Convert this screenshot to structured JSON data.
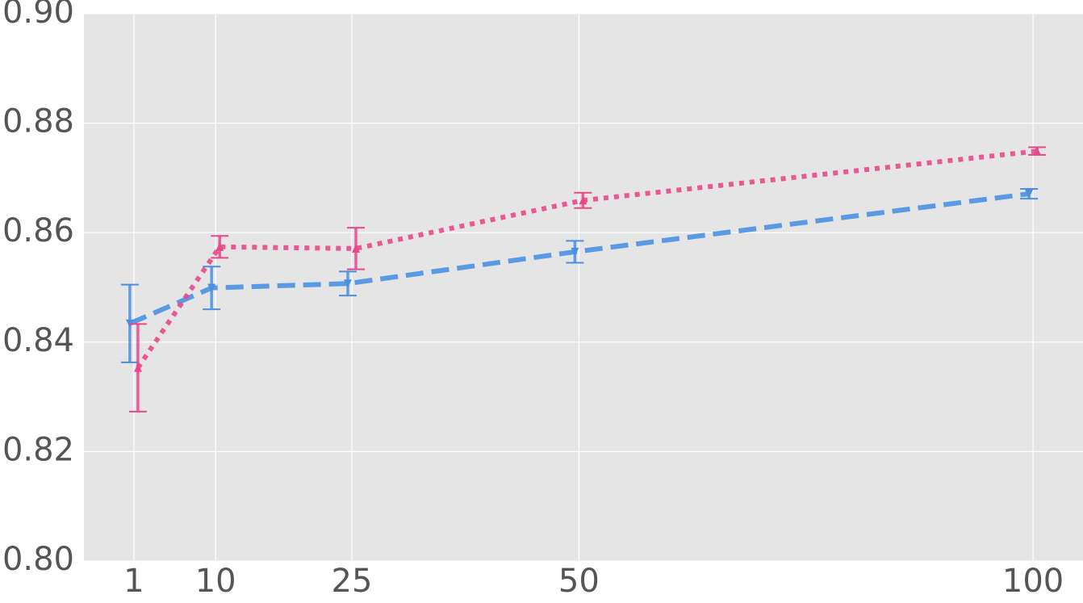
{
  "chart_data": {
    "type": "line",
    "x": [
      1,
      10,
      25,
      50,
      100
    ],
    "xlim": [
      -4.5,
      105.5
    ],
    "xticks": [
      1,
      10,
      25,
      50,
      100
    ],
    "ylim": [
      0.8,
      0.9
    ],
    "yticks": [
      {
        "value": 0.8,
        "label": "0.80"
      },
      0.82,
      0.84,
      0.86,
      0.88,
      {
        "value": 0.9,
        "label": "0.90"
      }
    ],
    "grid": true,
    "series": [
      {
        "color": "#4a90e2",
        "linestyle": "dashed",
        "marker": "triangle-down",
        "values": [
          0.8434,
          0.8499,
          0.8507,
          0.8565,
          0.8671
        ],
        "errors": [
          0.0071,
          0.0039,
          0.0022,
          0.002,
          0.0009
        ]
      },
      {
        "color": "#e8488a",
        "linestyle": "dotted",
        "marker": "triangle-up",
        "values": [
          0.8353,
          0.8574,
          0.8571,
          0.8659,
          0.8749
        ],
        "errors": [
          0.008,
          0.002,
          0.0038,
          0.0014,
          0.0007
        ]
      }
    ]
  }
}
